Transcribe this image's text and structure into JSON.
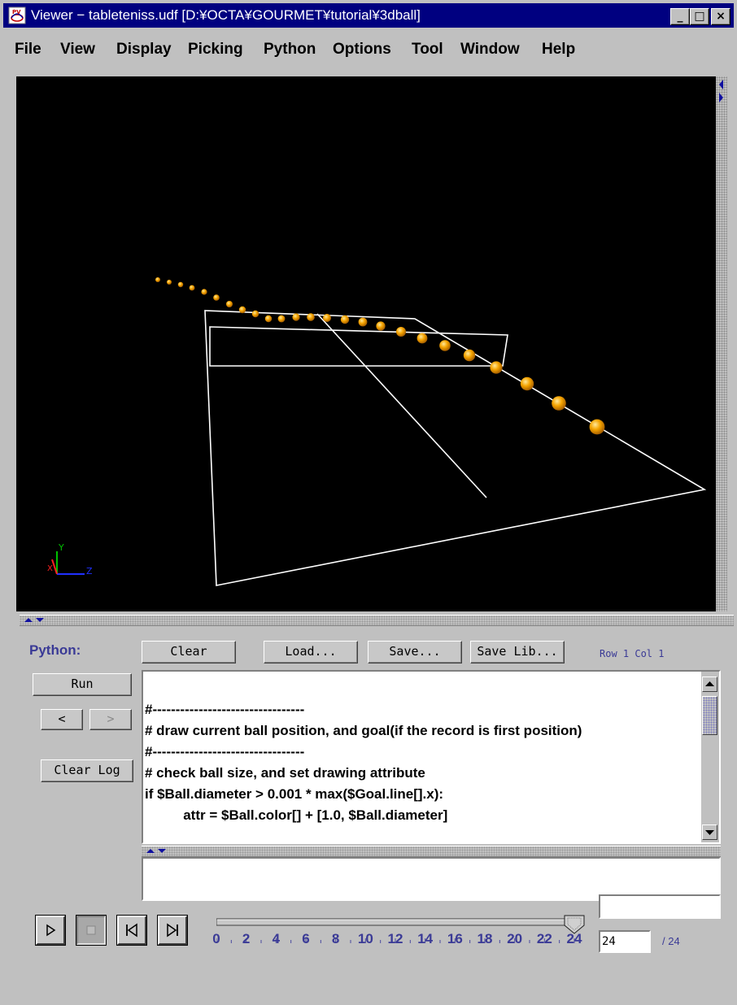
{
  "window": {
    "title": "Viewer − tableteniss.udf [D:¥OCTA¥GOURMET¥tutorial¥3dball]",
    "minimize": "_",
    "maximize": "□",
    "close": "×"
  },
  "menu": [
    "File",
    "View",
    "Display",
    "Picking",
    "Python",
    "Options",
    "Tool",
    "Window",
    "Help"
  ],
  "viewport": {
    "background": "#000000",
    "ball_color": "#f0a000",
    "axis_labels": {
      "x": "X",
      "y": "Y",
      "z": "Z"
    }
  },
  "python_panel": {
    "label": "Python:",
    "clear": "Clear",
    "load": "Load...",
    "save": "Save...",
    "save_lib": "Save Lib...",
    "cursor_pos": "Row 1 Col 1",
    "run": "Run",
    "prev": "<",
    "next": ">",
    "clear_log": "Clear Log",
    "code_lines": [
      "#---------------------------------",
      "# draw current ball position, and goal(if the record is first position)",
      "#---------------------------------",
      "# check ball size, and set drawing attribute",
      "if $Ball.diameter > 0.001 * max($Goal.line[].x):",
      "          attr = $Ball.color[] + [1.0, $Ball.diameter]"
    ]
  },
  "playback": {
    "slider_value": 24,
    "slider_max": 24,
    "tick_labels": [
      "0",
      "2",
      "4",
      "6",
      "8",
      "10",
      "12",
      "14",
      "16",
      "18",
      "20",
      "22",
      "24"
    ],
    "frame_value": "24",
    "frame_total": "/ 24"
  }
}
